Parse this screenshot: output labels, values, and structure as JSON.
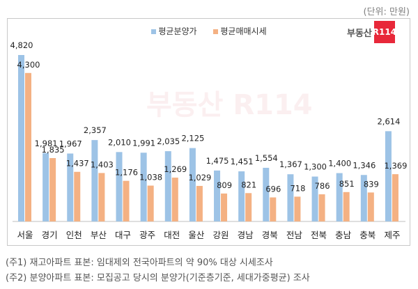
{
  "unit_label": "(단위: 만원)",
  "logo": {
    "text": "부동산",
    "badge": "R114"
  },
  "notes": [
    "(주1) 재고아파트 표본: 임대제외 전국아파트의 약 90% 대상 시세조사",
    "(주2) 분양아파트 표본: 모집공고 당시의 분양가(기준층기준, 세대가중평균) 조사"
  ],
  "chart_data": {
    "type": "bar",
    "legend_placement": "top",
    "grid": false,
    "categories": [
      "서울",
      "경기",
      "인천",
      "부산",
      "대구",
      "광주",
      "대전",
      "울산",
      "강원",
      "경남",
      "경북",
      "전남",
      "전북",
      "충남",
      "충북",
      "제주"
    ],
    "series": [
      {
        "name": "평균분양가",
        "color": "#9dc3e6",
        "values": [
          4820,
          1981,
          1967,
          2357,
          2010,
          1991,
          2035,
          2125,
          1475,
          1451,
          1554,
          1367,
          1300,
          1400,
          1346,
          2614
        ],
        "labels": [
          "4,820",
          "1,981",
          "1,967",
          "2,357",
          "2,010",
          "1,991",
          "2,035",
          "2,125",
          "1,475",
          "1,451",
          "1,554",
          "1,367",
          "1,300",
          "1,400",
          "1,346",
          "2,614"
        ]
      },
      {
        "name": "평균매매시세",
        "color": "#f4b183",
        "values": [
          4300,
          1835,
          1437,
          1403,
          1176,
          1038,
          1269,
          1029,
          809,
          821,
          696,
          718,
          786,
          851,
          839,
          1369
        ],
        "labels": [
          "4,300",
          "1,835",
          "1,437",
          "1,403",
          "1,176",
          "1,038",
          "1,269",
          "1,029",
          "809",
          "821",
          "696",
          "718",
          "786",
          "851",
          "839",
          "1,369"
        ]
      }
    ]
  }
}
